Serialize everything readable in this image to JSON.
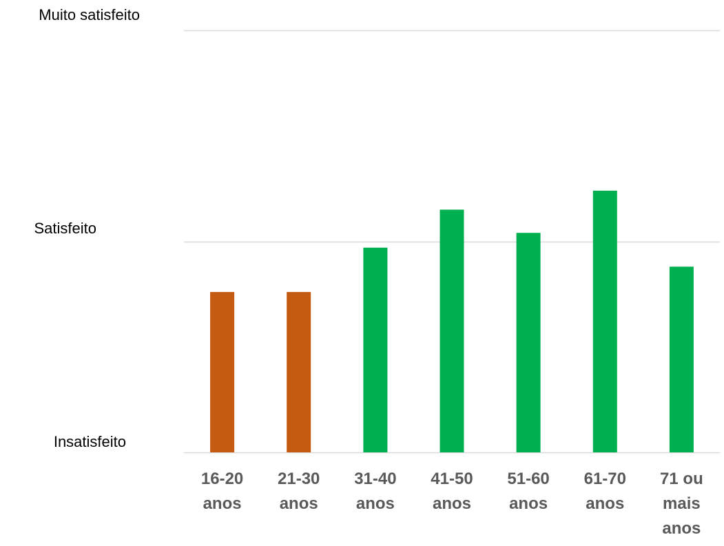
{
  "chart_data": {
    "type": "bar",
    "categories": [
      [
        "16-20",
        "anos"
      ],
      [
        "21-30",
        "anos"
      ],
      [
        "31-40",
        "anos"
      ],
      [
        "41-50",
        "anos"
      ],
      [
        "51-60",
        "anos"
      ],
      [
        "61-70",
        "anos"
      ],
      [
        "71 ou",
        "mais",
        "anos"
      ]
    ],
    "values": [
      1.76,
      1.76,
      1.97,
      2.15,
      2.04,
      2.24,
      1.88
    ],
    "bar_colors": [
      "#C55A11",
      "#C55A11",
      "#00B050",
      "#00B050",
      "#00B050",
      "#00B050",
      "#00B050"
    ],
    "y_ticks": [
      {
        "value": 1,
        "label": "Insatisfeito"
      },
      {
        "value": 2,
        "label": "Satisfeito"
      },
      {
        "value": 3,
        "label": "Muito satisfeito"
      }
    ],
    "ylim": [
      1,
      3
    ],
    "grid": true,
    "gridline_color": "#D9D9D9",
    "tick_label_color": "#595959"
  }
}
